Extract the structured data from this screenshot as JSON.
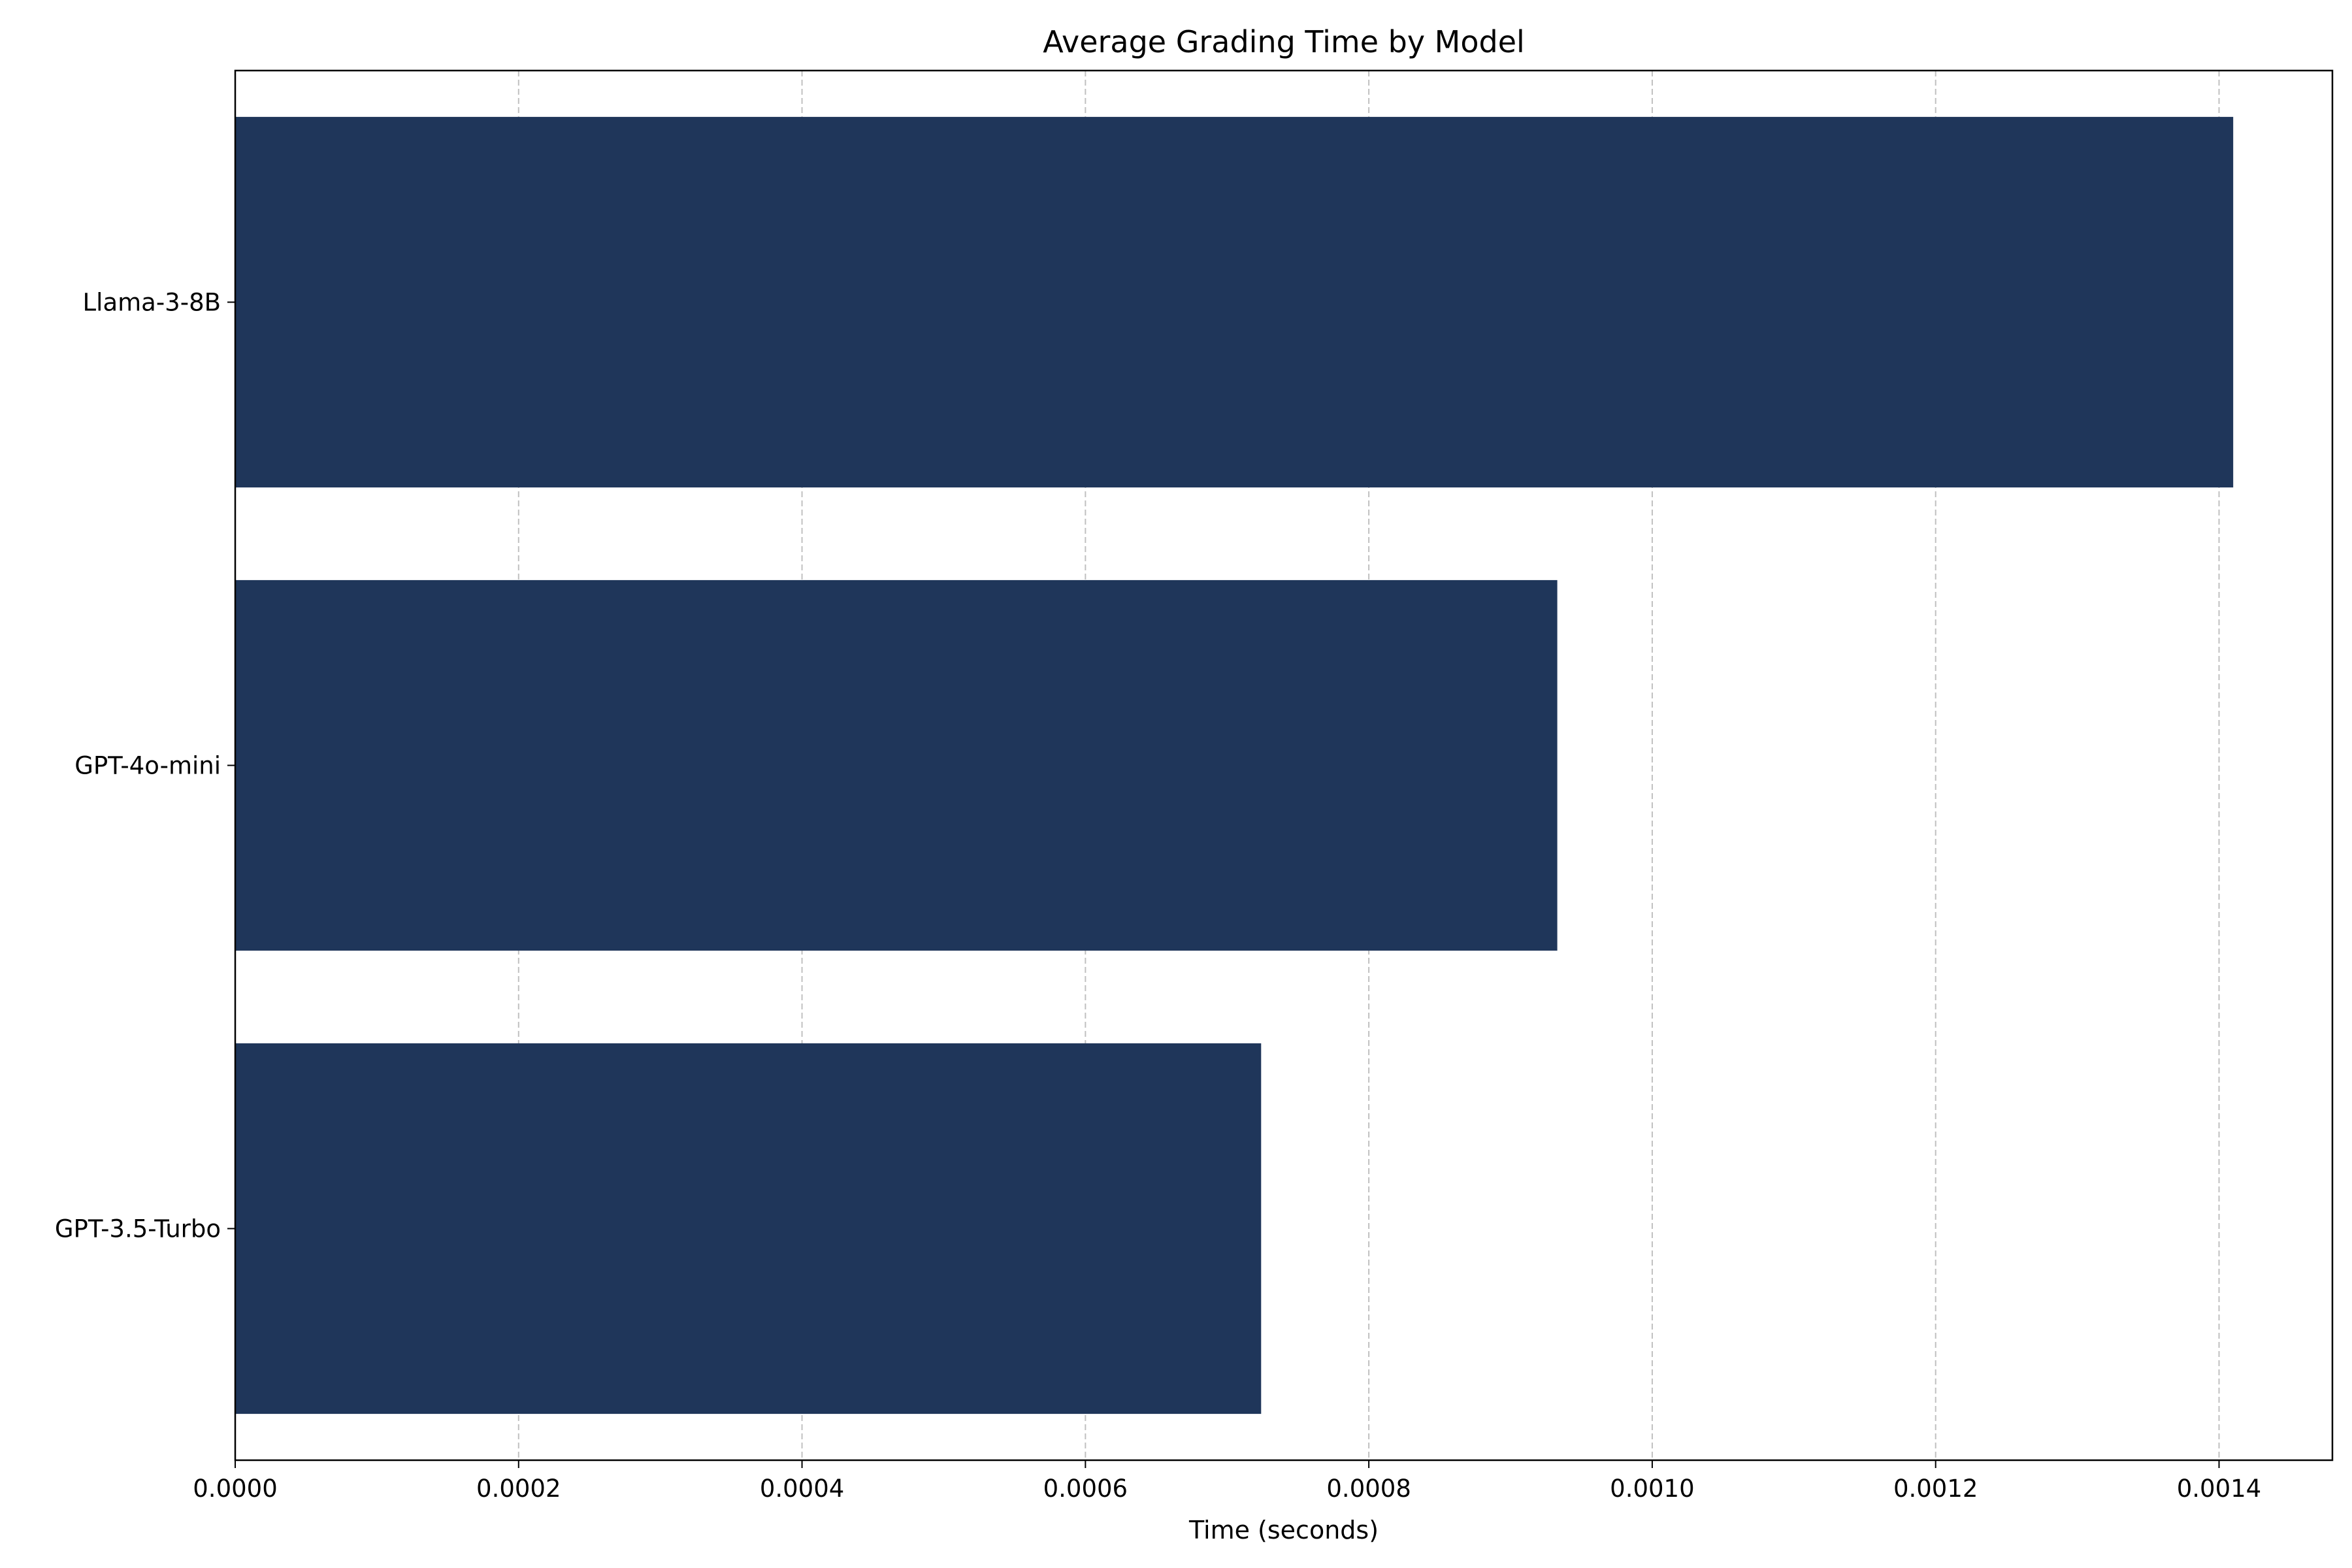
{
  "chart_data": {
    "type": "bar",
    "orientation": "horizontal",
    "title": "Average Grading Time by Model",
    "xlabel": "Time (seconds)",
    "ylabel": "",
    "categories": [
      "GPT-3.5-Turbo",
      "GPT-4o-mini",
      "Llama-3-8B"
    ],
    "values": [
      0.000724,
      0.000933,
      0.00141
    ],
    "xlim": [
      0,
      0.00148
    ],
    "xticks": [
      "0.0000",
      "0.0002",
      "0.0004",
      "0.0006",
      "0.0008",
      "0.0010",
      "0.0012",
      "0.0014"
    ],
    "xtick_values": [
      0,
      0.0002,
      0.0004,
      0.0006,
      0.0008,
      0.001,
      0.0012,
      0.0014
    ],
    "grid": "x-dashed",
    "bar_color": "#1f365a",
    "grid_color": "#c0c0c0",
    "legend": "none"
  }
}
